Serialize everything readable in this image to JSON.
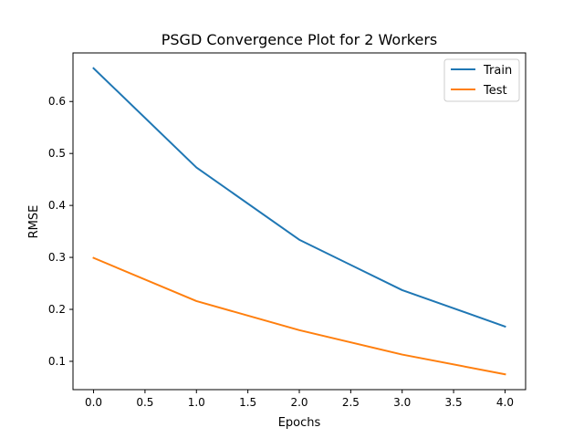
{
  "chart_data": {
    "type": "line",
    "title": "PSGD Convergence Plot for 2 Workers",
    "xlabel": "Epochs",
    "ylabel": "RMSE",
    "x": [
      0,
      1,
      2,
      3,
      4
    ],
    "series": [
      {
        "name": "Train",
        "color": "#1f77b4",
        "values": [
          0.664,
          0.473,
          0.334,
          0.237,
          0.167
        ]
      },
      {
        "name": "Test",
        "color": "#ff7f0e",
        "values": [
          0.299,
          0.216,
          0.16,
          0.113,
          0.075
        ]
      }
    ],
    "xlim": [
      -0.2,
      4.2
    ],
    "ylim": [
      0.0455,
      0.6935
    ],
    "xticks": [
      "0.0",
      "0.5",
      "1.0",
      "1.5",
      "2.0",
      "2.5",
      "3.0",
      "3.5",
      "4.0"
    ],
    "yticks": [
      "0.1",
      "0.2",
      "0.3",
      "0.4",
      "0.5",
      "0.6"
    ],
    "grid": false,
    "legend": "top-right"
  }
}
